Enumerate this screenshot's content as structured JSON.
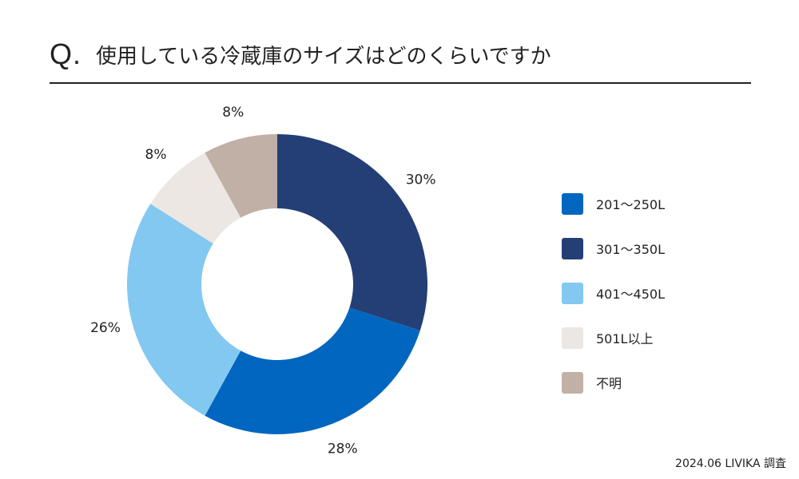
{
  "header": {
    "q_mark": "Q.",
    "question": "使用している冷蔵庫のサイズはどのくらいですか"
  },
  "footer": {
    "source": "2024.06 LIVIKA 調査"
  },
  "chart_data": {
    "type": "pie",
    "variant": "donut",
    "start": "top",
    "direction": "clockwise",
    "legend_position": "right",
    "slices": [
      {
        "label": "301〜350L",
        "value": 30,
        "display": "30%",
        "color": "#243f75"
      },
      {
        "label": "201〜250L",
        "value": 28,
        "display": "28%",
        "color": "#0066bf"
      },
      {
        "label": "401〜450L",
        "value": 26,
        "display": "26%",
        "color": "#82c8f0"
      },
      {
        "label": "501L以上",
        "value": 8,
        "display": "8%",
        "color": "#ece7e3"
      },
      {
        "label": "不明",
        "value": 8,
        "display": "8%",
        "color": "#c0b0a6"
      }
    ],
    "legend": [
      {
        "label": "201〜250L",
        "color": "#0066bf"
      },
      {
        "label": "301〜350L",
        "color": "#243f75"
      },
      {
        "label": "401〜450L",
        "color": "#82c8f0"
      },
      {
        "label": "501L以上",
        "color": "#ece7e3"
      },
      {
        "label": "不明",
        "color": "#c0b0a6"
      }
    ]
  }
}
